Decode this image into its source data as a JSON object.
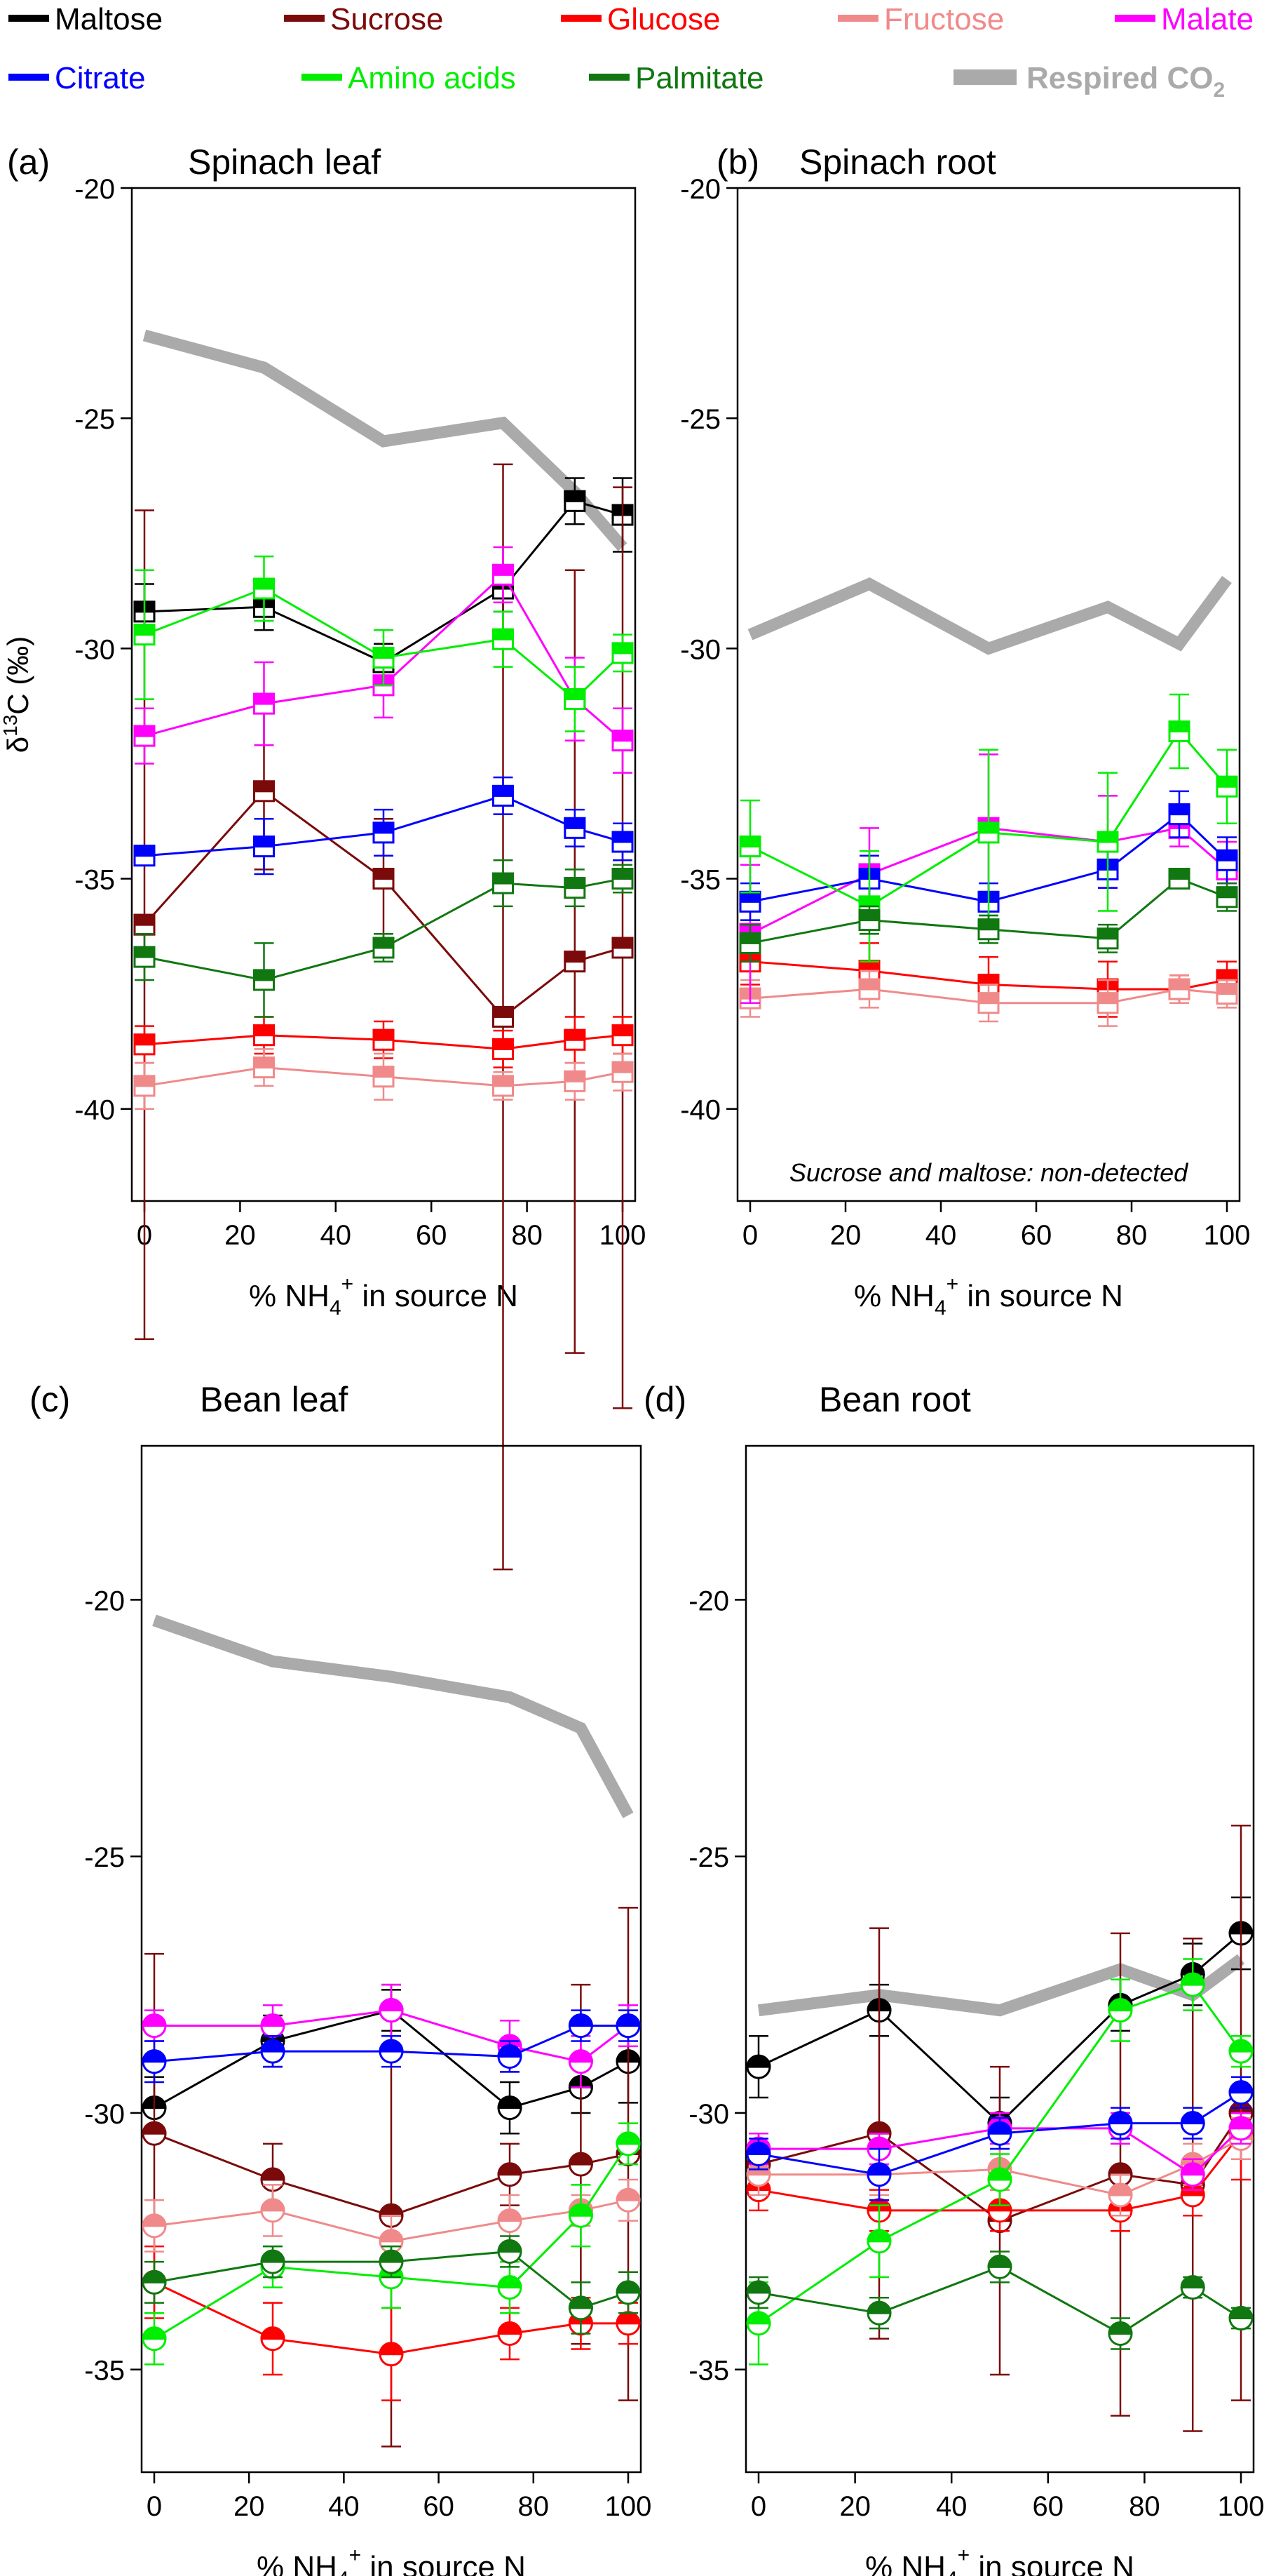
{
  "legend": {
    "entries": [
      {
        "name": "Maltose",
        "color": "#000000"
      },
      {
        "name": "Sucrose",
        "color": "#7b0a0a"
      },
      {
        "name": "Glucose",
        "color": "#ff0000"
      },
      {
        "name": "Fructose",
        "color": "#f08a8a"
      },
      {
        "name": "Malate",
        "color": "#ff00ff"
      },
      {
        "name": "Citrate",
        "color": "#0000ff"
      },
      {
        "name": "Amino acids",
        "color": "#00ee00"
      },
      {
        "name": "Palmitate",
        "color": "#117711"
      },
      {
        "name": "Respired CO",
        "sub": "2",
        "color": "#aaaaaa"
      }
    ]
  },
  "shared": {
    "ylabel": {
      "pre": "δ",
      "sup": "13",
      "post": "C (‰)"
    },
    "xlabel": {
      "pre": "% NH",
      "sub": "4",
      "sup": "+",
      "post": " in source N"
    }
  },
  "chart_data": [
    {
      "type": "line",
      "panel_label": "(a)",
      "title": "Spinach leaf",
      "marker": "square",
      "xlim": [
        0,
        100
      ],
      "ylim": [
        -42,
        -20
      ],
      "yticks": [
        -40,
        -35,
        -30,
        -25,
        -20
      ],
      "xticks": [
        0,
        20,
        40,
        60,
        80,
        100
      ],
      "x": [
        0,
        25,
        50,
        75,
        90,
        100
      ],
      "annotation": "",
      "series": [
        {
          "name": "Respired CO2",
          "kind": "co2",
          "values": [
            -23.2,
            -23.9,
            -25.5,
            -25.1,
            -26.6,
            -27.8
          ]
        },
        {
          "name": "Maltose",
          "values": [
            -29.2,
            -29.1,
            -30.3,
            -28.7,
            -26.8,
            -27.1
          ],
          "err": [
            0.6,
            0.5,
            0.4,
            0.5,
            0.5,
            0.8
          ]
        },
        {
          "name": "Sucrose",
          "values": [
            -36.0,
            -33.1,
            -35.0,
            -38.0,
            -36.8,
            -36.5
          ],
          "err": [
            9.0,
            1.7,
            1.3,
            12.0,
            8.5,
            10.0
          ]
        },
        {
          "name": "Glucose",
          "values": [
            -38.6,
            -38.4,
            -38.5,
            -38.7,
            -38.5,
            -38.4
          ],
          "err": [
            0.4,
            0.4,
            0.4,
            0.4,
            0.5,
            0.4
          ]
        },
        {
          "name": "Fructose",
          "values": [
            -39.5,
            -39.1,
            -39.3,
            -39.5,
            -39.4,
            -39.2
          ],
          "err": [
            0.5,
            0.4,
            0.5,
            0.3,
            0.4,
            0.4
          ]
        },
        {
          "name": "Malate",
          "values": [
            -31.9,
            -31.2,
            -30.8,
            -28.4,
            -31.1,
            -32.0
          ],
          "err": [
            0.6,
            0.9,
            0.7,
            0.6,
            0.9,
            0.7
          ]
        },
        {
          "name": "Citrate",
          "values": [
            -34.5,
            -34.3,
            -34.0,
            -33.2,
            -33.9,
            -34.2
          ],
          "err": [
            0.2,
            0.6,
            0.5,
            0.4,
            0.4,
            0.4
          ]
        },
        {
          "name": "Amino acids",
          "values": [
            -29.7,
            -28.7,
            -30.2,
            -29.8,
            -31.1,
            -30.1
          ],
          "err": [
            1.4,
            0.7,
            0.6,
            0.6,
            0.7,
            0.4
          ]
        },
        {
          "name": "Palmitate",
          "values": [
            -36.7,
            -37.2,
            -36.5,
            -35.1,
            -35.2,
            -35.0
          ],
          "err": [
            0.5,
            0.8,
            0.3,
            0.5,
            0.4,
            0.3
          ]
        }
      ]
    },
    {
      "type": "line",
      "panel_label": "(b)",
      "title": "Spinach root",
      "marker": "square",
      "xlim": [
        0,
        100
      ],
      "ylim": [
        -42,
        -20
      ],
      "yticks": [
        -40,
        -35,
        -30,
        -25,
        -20
      ],
      "xticks": [
        0,
        20,
        40,
        60,
        80,
        100
      ],
      "x": [
        0,
        25,
        50,
        75,
        90,
        100
      ],
      "annotation": "Sucrose and maltose: non-detected",
      "series": [
        {
          "name": "Respired CO2",
          "kind": "co2",
          "values": [
            -29.7,
            -28.6,
            -30.0,
            -29.1,
            -29.9,
            -28.5
          ]
        },
        {
          "name": "Glucose",
          "values": [
            -36.8,
            -37.0,
            -37.3,
            -37.4,
            -37.4,
            -37.2
          ],
          "err": [
            0.5,
            0.6,
            0.6,
            0.6,
            0.3,
            0.4
          ]
        },
        {
          "name": "Fructose",
          "values": [
            -37.6,
            -37.4,
            -37.7,
            -37.7,
            -37.4,
            -37.5
          ],
          "err": [
            0.4,
            0.4,
            0.4,
            0.5,
            0.3,
            0.3
          ]
        },
        {
          "name": "Malate",
          "values": [
            -36.2,
            -34.9,
            -33.9,
            -34.2,
            -33.9,
            -34.8
          ],
          "err": [
            1.5,
            1.0,
            1.6,
            1.0,
            0.4,
            0.6
          ]
        },
        {
          "name": "Citrate",
          "values": [
            -35.5,
            -35.0,
            -35.5,
            -34.8,
            -33.6,
            -34.6
          ],
          "err": [
            0.4,
            0.5,
            0.4,
            0.4,
            0.5,
            0.5
          ]
        },
        {
          "name": "Amino acids",
          "values": [
            -34.3,
            -35.6,
            -34.0,
            -34.2,
            -31.8,
            -33.0
          ],
          "err": [
            1.0,
            1.2,
            1.8,
            1.5,
            0.8,
            0.8
          ]
        },
        {
          "name": "Palmitate",
          "values": [
            -36.4,
            -35.9,
            -36.1,
            -36.3,
            -35.0,
            -35.4
          ],
          "err": [
            0.4,
            0.3,
            0.3,
            0.3,
            0.2,
            0.3
          ]
        }
      ]
    },
    {
      "type": "line",
      "panel_label": "(c)",
      "title": "Bean leaf",
      "marker": "circle",
      "xlim": [
        0,
        100
      ],
      "ylim": [
        -37,
        -17
      ],
      "yticks": [
        -35,
        -30,
        -25,
        -20
      ],
      "xticks": [
        0,
        20,
        40,
        60,
        80,
        100
      ],
      "x": [
        0,
        25,
        50,
        75,
        90,
        100
      ],
      "annotation": "",
      "series": [
        {
          "name": "Respired CO2",
          "kind": "co2",
          "values": [
            -20.4,
            -21.2,
            -21.5,
            -21.9,
            -22.5,
            -24.2
          ]
        },
        {
          "name": "Maltose",
          "values": [
            -29.9,
            -28.6,
            -28.0,
            -29.9,
            -29.5,
            -29.0
          ],
          "err": [
            0.6,
            0.5,
            0.4,
            0.5,
            0.5,
            0.8
          ]
        },
        {
          "name": "Sucrose",
          "values": [
            -30.4,
            -31.3,
            -32.0,
            -31.2,
            -31.0,
            -30.8
          ],
          "err": [
            3.5,
            0.7,
            4.5,
            0.6,
            3.5,
            4.8
          ]
        },
        {
          "name": "Glucose",
          "values": [
            -33.3,
            -34.4,
            -34.7,
            -34.3,
            -34.1,
            -34.1
          ],
          "err": [
            0.7,
            0.7,
            0.9,
            0.5,
            0.5,
            0.4
          ]
        },
        {
          "name": "Fructose",
          "values": [
            -32.2,
            -31.9,
            -32.5,
            -32.1,
            -31.9,
            -31.7
          ],
          "err": [
            0.5,
            0.5,
            0.5,
            0.5,
            0.3,
            0.4
          ]
        },
        {
          "name": "Malate",
          "values": [
            -28.3,
            -28.3,
            -28.0,
            -28.7,
            -29.0,
            -28.3
          ],
          "err": [
            0.3,
            0.4,
            0.5,
            0.5,
            0.5,
            0.4
          ]
        },
        {
          "name": "Citrate",
          "values": [
            -29.0,
            -28.8,
            -28.8,
            -28.9,
            -28.3,
            -28.3
          ],
          "err": [
            0.4,
            0.3,
            0.3,
            0.3,
            0.3,
            0.3
          ]
        },
        {
          "name": "Amino acids",
          "values": [
            -34.4,
            -33.0,
            -33.2,
            -33.4,
            -32.0,
            -30.6
          ],
          "err": [
            0.5,
            0.4,
            0.6,
            0.5,
            0.6,
            0.4
          ]
        },
        {
          "name": "Palmitate",
          "values": [
            -33.3,
            -32.9,
            -32.9,
            -32.7,
            -33.8,
            -33.5
          ],
          "err": [
            0.4,
            0.3,
            0.3,
            0.3,
            0.5,
            0.4
          ]
        }
      ]
    },
    {
      "type": "line",
      "panel_label": "(d)",
      "title": "Bean root",
      "marker": "circle",
      "xlim": [
        0,
        100
      ],
      "ylim": [
        -37,
        -17
      ],
      "yticks": [
        -35,
        -30,
        -25,
        -20
      ],
      "xticks": [
        0,
        20,
        40,
        60,
        80,
        100
      ],
      "x": [
        0,
        25,
        50,
        75,
        90,
        100
      ],
      "annotation": "",
      "series": [
        {
          "name": "Respired CO2",
          "kind": "co2",
          "values": [
            -28.0,
            -27.7,
            -28.0,
            -27.2,
            -27.7,
            -27.0
          ]
        },
        {
          "name": "Maltose",
          "values": [
            -29.1,
            -28.0,
            -30.2,
            -27.9,
            -27.3,
            -26.5
          ],
          "err": [
            0.6,
            0.5,
            0.5,
            0.5,
            0.6,
            0.7
          ]
        },
        {
          "name": "Sucrose",
          "values": [
            -31.0,
            -30.4,
            -32.1,
            -31.2,
            -31.4,
            -30.0
          ],
          "err": [
            0.6,
            4.0,
            3.0,
            4.7,
            4.8,
            5.6
          ]
        },
        {
          "name": "Glucose",
          "values": [
            -31.5,
            -31.9,
            -31.9,
            -31.9,
            -31.6,
            -30.4
          ],
          "err": [
            0.4,
            0.4,
            0.4,
            0.4,
            0.4,
            0.9
          ]
        },
        {
          "name": "Fructose",
          "values": [
            -31.2,
            -31.2,
            -31.1,
            -31.6,
            -31.0,
            -30.5
          ],
          "err": [
            0.4,
            0.4,
            0.4,
            0.4,
            0.4,
            0.4
          ]
        },
        {
          "name": "Malate",
          "values": [
            -30.7,
            -30.7,
            -30.3,
            -30.3,
            -31.2,
            -30.3
          ],
          "err": [
            0.3,
            0.3,
            0.3,
            0.3,
            0.3,
            0.3
          ]
        },
        {
          "name": "Citrate",
          "values": [
            -30.8,
            -31.2,
            -30.4,
            -30.2,
            -30.2,
            -29.6
          ],
          "err": [
            0.3,
            0.5,
            0.3,
            0.3,
            0.3,
            0.3
          ]
        },
        {
          "name": "Amino acids",
          "values": [
            -34.1,
            -32.5,
            -31.3,
            -28.0,
            -27.5,
            -28.8
          ],
          "err": [
            0.8,
            0.7,
            0.5,
            0.6,
            0.5,
            0.3
          ]
        },
        {
          "name": "Palmitate",
          "values": [
            -33.5,
            -33.9,
            -33.0,
            -34.3,
            -33.4,
            -34.0
          ],
          "err": [
            0.3,
            0.3,
            0.3,
            0.3,
            0.2,
            0.2
          ]
        }
      ]
    }
  ]
}
